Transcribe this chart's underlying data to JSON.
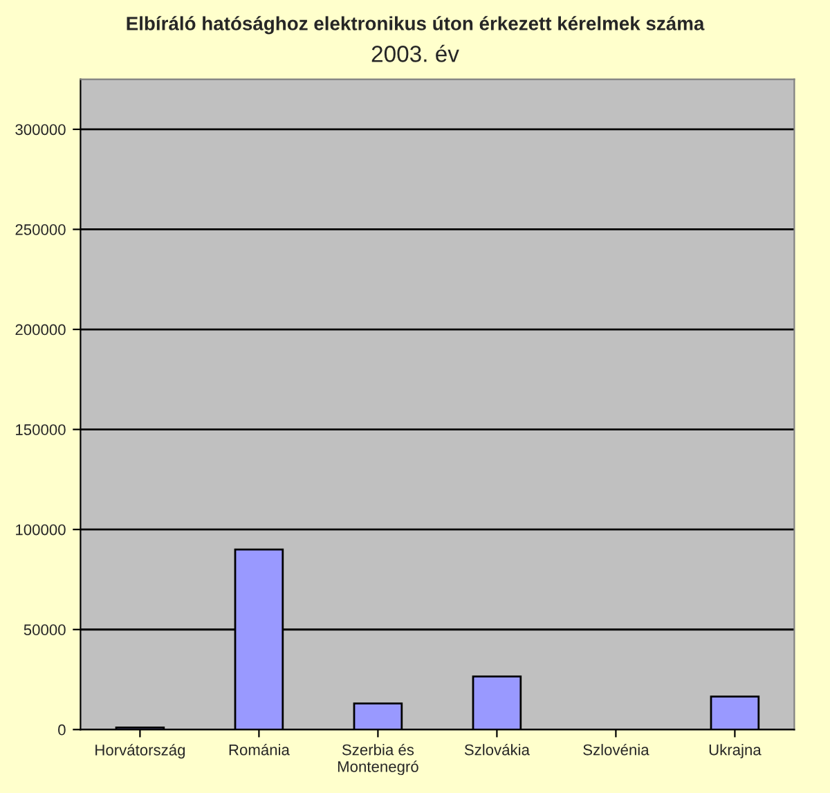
{
  "chart_data": {
    "type": "bar",
    "title": "Elbíráló hatósághoz elektronikus úton érkezett kérelmek száma",
    "subtitle": "2003. év",
    "categories": [
      "Horvátország",
      "Románia",
      "Szerbia és\nMontenegró",
      "Szlovákia",
      "Szlovénia",
      "Ukrajna"
    ],
    "values": [
      1000,
      90000,
      13000,
      26500,
      0,
      16500
    ],
    "color": "#9999ff",
    "ylim": [
      0,
      325000
    ],
    "yticks": [
      0,
      50000,
      100000,
      150000,
      200000,
      250000,
      300000
    ],
    "grid": "y"
  }
}
